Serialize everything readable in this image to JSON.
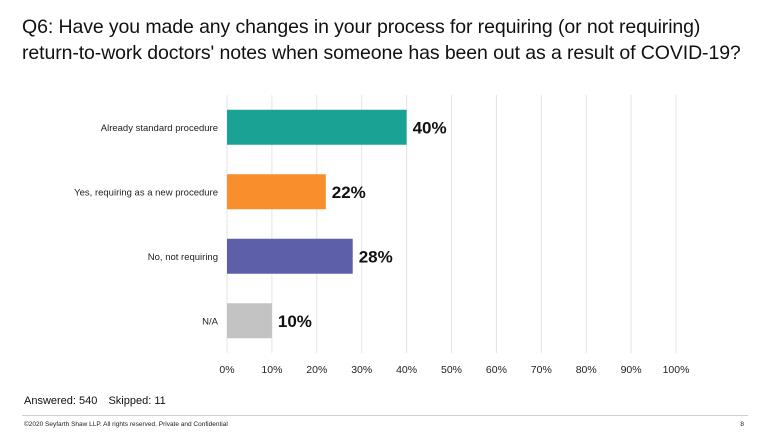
{
  "question": {
    "number": "Q6:",
    "text": "Have you made any changes in your process for requiring (or not requiring) return-to-work doctors' notes when someone has been out as a result of COVID-19?"
  },
  "chart_data": {
    "type": "bar",
    "orientation": "horizontal",
    "categories": [
      "Already standard procedure",
      "Yes, requiring as a new procedure",
      "No, not requiring",
      "N/A"
    ],
    "values": [
      40,
      22,
      28,
      10
    ],
    "value_labels": [
      "40%",
      "22%",
      "28%",
      "10%"
    ],
    "colors": [
      "#1aa394",
      "#f98e2c",
      "#5d5fa9",
      "#c3c3c3"
    ],
    "xlim": [
      0,
      100
    ],
    "xticks": [
      "0%",
      "10%",
      "20%",
      "30%",
      "40%",
      "50%",
      "60%",
      "70%",
      "80%",
      "90%",
      "100%"
    ],
    "grid": true,
    "title": "",
    "xlabel": "",
    "ylabel": ""
  },
  "footer": {
    "answered": "Answered: 540",
    "skipped": "Skipped: 11",
    "copyright": "©2020 Seyfarth Shaw LLP. All rights reserved. Private and Confidential",
    "page": "8"
  }
}
